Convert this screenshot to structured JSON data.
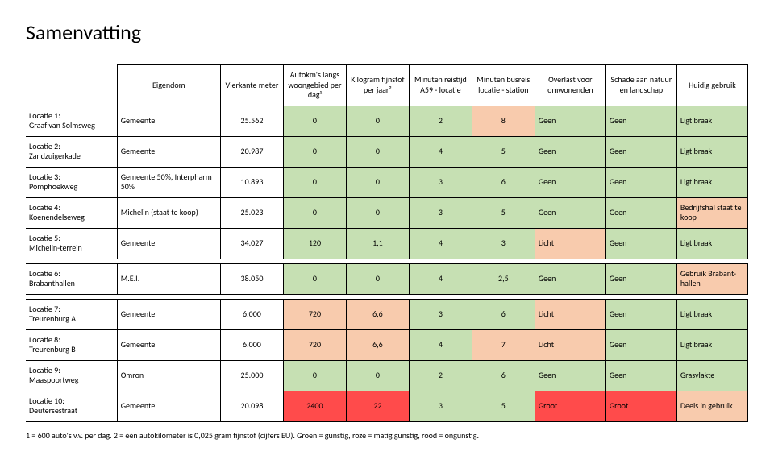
{
  "title": "Samenvatting",
  "colors": {
    "green": "#c6e0b3",
    "pink": "#f8cbad",
    "red": "#ff4b4b",
    "white": "#ffffff"
  },
  "columns": [
    {
      "key": "eigendom",
      "label": "Eigendom"
    },
    {
      "key": "vierkante",
      "label": "Vierkante meter"
    },
    {
      "key": "autokm",
      "label": "Autokm's langs woongebied per dag¹"
    },
    {
      "key": "fijnstof",
      "label": "Kilogram fijnstof per jaar²"
    },
    {
      "key": "reistijd",
      "label": "Minuten reistijd A59 - locatie"
    },
    {
      "key": "busreis",
      "label": "Minuten busreis locatie - station"
    },
    {
      "key": "overlast",
      "label": "Overlast voor omwonenden"
    },
    {
      "key": "schade",
      "label": "Schade aan natuur en landschap"
    },
    {
      "key": "gebruik",
      "label": "Huidig gebruik"
    }
  ],
  "rows": [
    {
      "label": "Locatie 1:\nGraaf van Solmsweg",
      "cells": [
        {
          "v": "Gemeente",
          "c": "white"
        },
        {
          "v": "25.562",
          "c": "white"
        },
        {
          "v": "0",
          "c": "green"
        },
        {
          "v": "0",
          "c": "green"
        },
        {
          "v": "2",
          "c": "green"
        },
        {
          "v": "8",
          "c": "pink"
        },
        {
          "v": "Geen",
          "c": "green"
        },
        {
          "v": "Geen",
          "c": "green"
        },
        {
          "v": "Ligt braak",
          "c": "green"
        }
      ]
    },
    {
      "label": "Locatie 2:\nZandzuigerkade",
      "cells": [
        {
          "v": "Gemeente",
          "c": "white"
        },
        {
          "v": "20.987",
          "c": "white"
        },
        {
          "v": "0",
          "c": "green"
        },
        {
          "v": "0",
          "c": "green"
        },
        {
          "v": "4",
          "c": "green"
        },
        {
          "v": "5",
          "c": "green"
        },
        {
          "v": "Geen",
          "c": "green"
        },
        {
          "v": "Geen",
          "c": "green"
        },
        {
          "v": "Ligt braak",
          "c": "green"
        }
      ]
    },
    {
      "label": "Locatie 3:\nPomphoekweg",
      "cells": [
        {
          "v": "Gemeente 50%, Interpharm 50%",
          "c": "white"
        },
        {
          "v": "10.893",
          "c": "white"
        },
        {
          "v": "0",
          "c": "green"
        },
        {
          "v": "0",
          "c": "green"
        },
        {
          "v": "3",
          "c": "green"
        },
        {
          "v": "6",
          "c": "green"
        },
        {
          "v": "Geen",
          "c": "green"
        },
        {
          "v": "Geen",
          "c": "green"
        },
        {
          "v": "Ligt braak",
          "c": "green"
        }
      ]
    },
    {
      "label": "Locatie 4:\nKoenendelseweg",
      "cells": [
        {
          "v": "Michelin (staat te koop)",
          "c": "white"
        },
        {
          "v": "25.023",
          "c": "white"
        },
        {
          "v": "0",
          "c": "green"
        },
        {
          "v": "0",
          "c": "green"
        },
        {
          "v": "3",
          "c": "green"
        },
        {
          "v": "5",
          "c": "green"
        },
        {
          "v": "Geen",
          "c": "green"
        },
        {
          "v": "Geen",
          "c": "green"
        },
        {
          "v": "Bedrijfshal staat te koop",
          "c": "pink"
        }
      ]
    },
    {
      "label": "Locatie 5:\nMichelin-terrein",
      "cells": [
        {
          "v": "Gemeente",
          "c": "white"
        },
        {
          "v": "34.027",
          "c": "white"
        },
        {
          "v": "120",
          "c": "green"
        },
        {
          "v": "1,1",
          "c": "green"
        },
        {
          "v": "4",
          "c": "green"
        },
        {
          "v": "3",
          "c": "green"
        },
        {
          "v": "Licht",
          "c": "pink"
        },
        {
          "v": "Geen",
          "c": "green"
        },
        {
          "v": "Ligt braak",
          "c": "green"
        }
      ]
    },
    {
      "label": "Locatie 6:\nBrabanthallen",
      "cells": [
        {
          "v": "M.E.I.",
          "c": "white"
        },
        {
          "v": "38.050",
          "c": "white"
        },
        {
          "v": "0",
          "c": "green"
        },
        {
          "v": "0",
          "c": "green"
        },
        {
          "v": "4",
          "c": "green"
        },
        {
          "v": "2,5",
          "c": "green"
        },
        {
          "v": "Geen",
          "c": "green"
        },
        {
          "v": "Geen",
          "c": "green"
        },
        {
          "v": "Gebruik Brabant-hallen",
          "c": "pink"
        }
      ]
    },
    {
      "label": "Locatie 7:\nTreurenburg A",
      "cells": [
        {
          "v": "Gemeente",
          "c": "white"
        },
        {
          "v": "6.000",
          "c": "white"
        },
        {
          "v": "720",
          "c": "pink"
        },
        {
          "v": "6,6",
          "c": "pink"
        },
        {
          "v": "3",
          "c": "green"
        },
        {
          "v": "6",
          "c": "green"
        },
        {
          "v": "Licht",
          "c": "pink"
        },
        {
          "v": "Geen",
          "c": "green"
        },
        {
          "v": "Ligt braak",
          "c": "green"
        }
      ]
    },
    {
      "label": "Locatie 8:\nTreurenburg B",
      "cells": [
        {
          "v": "Gemeente",
          "c": "white"
        },
        {
          "v": "6.000",
          "c": "white"
        },
        {
          "v": "720",
          "c": "pink"
        },
        {
          "v": "6,6",
          "c": "pink"
        },
        {
          "v": "4",
          "c": "green"
        },
        {
          "v": "7",
          "c": "pink"
        },
        {
          "v": "Licht",
          "c": "pink"
        },
        {
          "v": "Geen",
          "c": "green"
        },
        {
          "v": "Ligt braak",
          "c": "green"
        }
      ]
    },
    {
      "label": "Locatie 9:\nMaaspoortweg",
      "cells": [
        {
          "v": "Omron",
          "c": "white"
        },
        {
          "v": "25.000",
          "c": "white"
        },
        {
          "v": "0",
          "c": "green"
        },
        {
          "v": "0",
          "c": "green"
        },
        {
          "v": "2",
          "c": "green"
        },
        {
          "v": "6",
          "c": "green"
        },
        {
          "v": "Geen",
          "c": "green"
        },
        {
          "v": "Geen",
          "c": "green"
        },
        {
          "v": "Grasvlakte",
          "c": "green"
        }
      ]
    },
    {
      "label": "Locatie 10:\nDeutersestraat",
      "cells": [
        {
          "v": "Gemeente",
          "c": "white"
        },
        {
          "v": "20.098",
          "c": "white"
        },
        {
          "v": "2400",
          "c": "red"
        },
        {
          "v": "22",
          "c": "red"
        },
        {
          "v": "3",
          "c": "green"
        },
        {
          "v": "5",
          "c": "green"
        },
        {
          "v": "Groot",
          "c": "red"
        },
        {
          "v": "Groot",
          "c": "red"
        },
        {
          "v": "Deels in gebruik",
          "c": "pink"
        }
      ]
    }
  ],
  "footnote": "1 = 600 auto's v.v. per dag.   2 = één autokilometer is 0,025 gram fijnstof (cijfers EU).   Groen = gunstig, roze = matig gunstig, rood = ongunstig."
}
